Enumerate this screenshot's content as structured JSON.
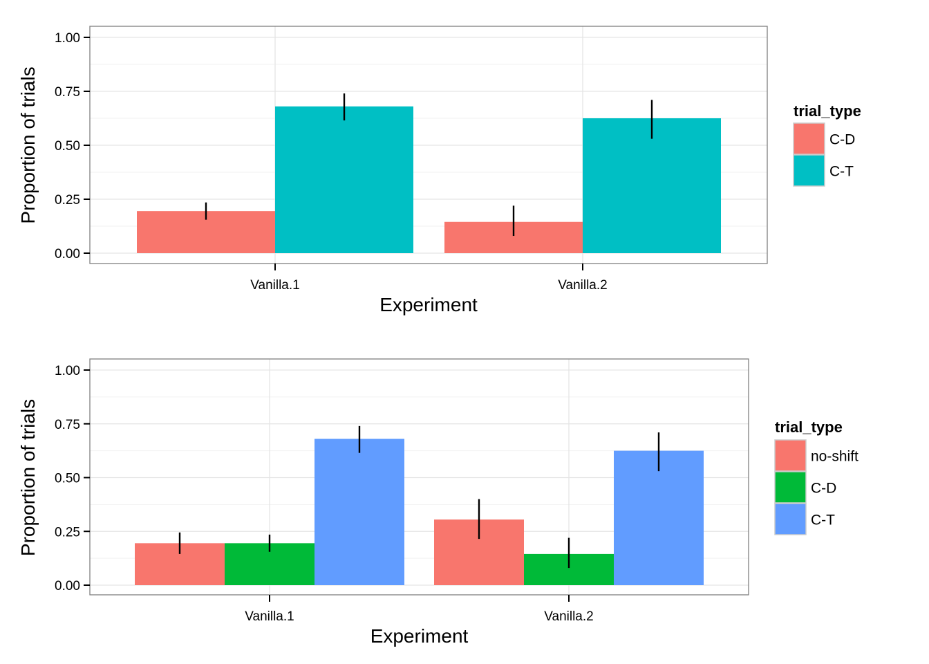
{
  "chart_data": [
    {
      "type": "bar",
      "title": "",
      "xlabel": "Experiment",
      "ylabel": "Proportion of trials",
      "ylim": [
        0,
        1
      ],
      "yticks": [
        "0.00",
        "0.25",
        "0.50",
        "0.75",
        "1.00"
      ],
      "categories": [
        "Vanilla.1",
        "Vanilla.2"
      ],
      "grid": true,
      "legend": {
        "title": "trial_type",
        "position": "right"
      },
      "series": [
        {
          "name": "C-D",
          "color": "#F8766D",
          "values": [
            0.195,
            0.145
          ],
          "err_low": [
            0.155,
            0.08
          ],
          "err_high": [
            0.235,
            0.22
          ]
        },
        {
          "name": "C-T",
          "color": "#00BFC4",
          "values": [
            0.68,
            0.625
          ],
          "err_low": [
            0.615,
            0.53
          ],
          "err_high": [
            0.74,
            0.71
          ]
        }
      ]
    },
    {
      "type": "bar",
      "title": "",
      "xlabel": "Experiment",
      "ylabel": "Proportion of trials",
      "ylim": [
        0,
        1
      ],
      "yticks": [
        "0.00",
        "0.25",
        "0.50",
        "0.75",
        "1.00"
      ],
      "categories": [
        "Vanilla.1",
        "Vanilla.2"
      ],
      "grid": true,
      "legend": {
        "title": "trial_type",
        "position": "right"
      },
      "series": [
        {
          "name": "no-shift",
          "color": "#F8766D",
          "values": [
            0.195,
            0.305
          ],
          "err_low": [
            0.145,
            0.215
          ],
          "err_high": [
            0.245,
            0.4
          ]
        },
        {
          "name": "C-D",
          "color": "#00BA38",
          "values": [
            0.195,
            0.145
          ],
          "err_low": [
            0.155,
            0.08
          ],
          "err_high": [
            0.235,
            0.22
          ]
        },
        {
          "name": "C-T",
          "color": "#619CFF",
          "values": [
            0.68,
            0.625
          ],
          "err_low": [
            0.615,
            0.53
          ],
          "err_high": [
            0.74,
            0.71
          ]
        }
      ]
    }
  ]
}
